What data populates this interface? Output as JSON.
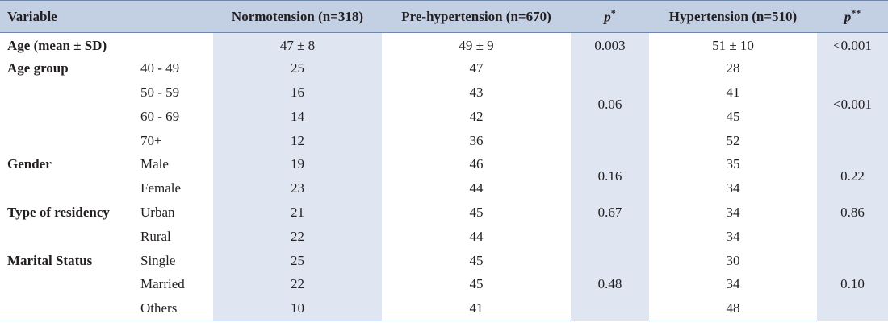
{
  "header": {
    "variable": "Variable",
    "normo": "Normotension (n=318)",
    "pre": "Pre-hypertension (n=670)",
    "p1": "p",
    "p1_sup": "*",
    "hyper": "Hypertension (n=510)",
    "p2": "p",
    "p2_sup": "**"
  },
  "age_mean": {
    "label": "Age (mean ± SD)",
    "normo": "47 ± 8",
    "pre": "49 ± 9",
    "p1": "0.003",
    "hyper": "51 ± 10",
    "p2": "<0.001"
  },
  "age_group": {
    "label": "Age group",
    "p1": "0.06",
    "p2": "<0.001",
    "rows": [
      {
        "sub": "40 - 49",
        "normo": "25",
        "pre": "47",
        "hyper": "28"
      },
      {
        "sub": "50 - 59",
        "normo": "16",
        "pre": "43",
        "hyper": "41"
      },
      {
        "sub": "60 - 69",
        "normo": "14",
        "pre": "42",
        "hyper": "45"
      },
      {
        "sub": "70+",
        "normo": "12",
        "pre": "36",
        "hyper": "52"
      }
    ]
  },
  "gender": {
    "label": "Gender",
    "p1": "0.16",
    "p2": "0.22",
    "rows": [
      {
        "sub": "Male",
        "normo": "19",
        "pre": "46",
        "hyper": "35"
      },
      {
        "sub": "Female",
        "normo": "23",
        "pre": "44",
        "hyper": "34"
      }
    ]
  },
  "residency": {
    "label": "Type of residency",
    "p1": "0.67",
    "p2": "0.86",
    "rows": [
      {
        "sub": "Urban",
        "normo": "21",
        "pre": "45",
        "hyper": "34"
      },
      {
        "sub": "Rural",
        "normo": "22",
        "pre": "44",
        "hyper": "34"
      }
    ]
  },
  "marital": {
    "label": "Marital Status",
    "p1": "0.48",
    "p2": "0.10",
    "rows": [
      {
        "sub": "Single",
        "normo": "25",
        "pre": "45",
        "hyper": "30"
      },
      {
        "sub": "Married",
        "normo": "22",
        "pre": "45",
        "hyper": "34"
      },
      {
        "sub": "Others",
        "normo": "10",
        "pre": "41",
        "hyper": "48"
      }
    ]
  }
}
